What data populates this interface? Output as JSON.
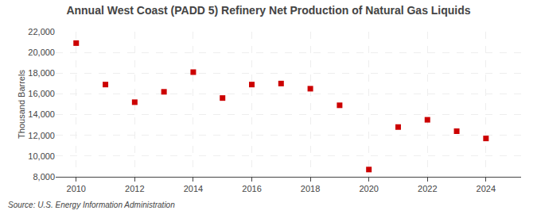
{
  "chart_data": {
    "type": "scatter",
    "title": "Annual West Coast (PADD 5) Refinery Net Production of Natural Gas Liquids",
    "ylabel": "Thousand Barrels",
    "annotations": [
      "Source: U.S. Energy Information Administration"
    ],
    "x": [
      2010,
      2011,
      2012,
      2013,
      2014,
      2015,
      2016,
      2017,
      2018,
      2019,
      2020,
      2021,
      2022,
      2023,
      2024
    ],
    "values": [
      20900,
      16900,
      15200,
      16200,
      18100,
      15600,
      16900,
      17000,
      16500,
      14900,
      8700,
      12800,
      13500,
      12400,
      11700
    ],
    "color": "#cc0000",
    "marker": "square",
    "xlim": [
      2009.3,
      2025.2
    ],
    "xticks": [
      2010,
      2012,
      2014,
      2016,
      2018,
      2020,
      2022,
      2024
    ],
    "ylim": [
      8000,
      22000
    ],
    "yticks": [
      {
        "value": 8000,
        "label": "8,000"
      },
      {
        "value": 10000,
        "label": "10,000"
      },
      {
        "value": 12000,
        "label": "12,000"
      },
      {
        "value": 14000,
        "label": "14,000"
      },
      {
        "value": 16000,
        "label": "16,000"
      },
      {
        "value": 18000,
        "label": "18,000"
      },
      {
        "value": 20000,
        "label": "20,000"
      },
      {
        "value": 22000,
        "label": "22,000"
      }
    ],
    "grid": true
  }
}
